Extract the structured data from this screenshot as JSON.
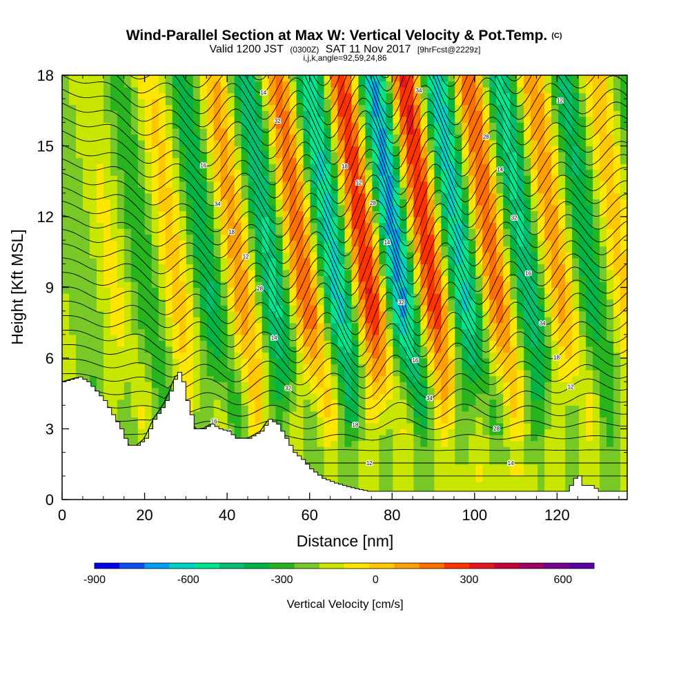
{
  "chart_data": {
    "type": "heatmap",
    "title": "Wind-Parallel Section at Max W: Vertical Velocity & Pot.Temp.",
    "title_mark": "(C)",
    "subtitle_parts": [
      "Valid 1200 JST",
      "(0300Z)",
      "SAT 11 Nov 2017",
      "[9hrFcst@2229z]"
    ],
    "subtitle2": "i,j,k,angle=92,59,24,86",
    "xlabel": "Distance [nm]",
    "ylabel": "Height [Kft MSL]",
    "xlim": [
      0,
      137
    ],
    "ylim": [
      0,
      18
    ],
    "x_ticks": [
      0,
      20,
      40,
      60,
      80,
      100,
      120
    ],
    "y_ticks": [
      0,
      3,
      6,
      9,
      12,
      15,
      18
    ],
    "grid": false,
    "field": "vertical velocity (cm/s) with potential temperature contours",
    "wave_crests_updraft_x_nm": [
      33,
      57,
      72,
      86,
      102,
      118,
      134
    ],
    "wave_troughs_downdraft_x_nm": [
      27,
      42,
      65,
      79,
      93,
      110,
      126
    ],
    "terrain_profile": {
      "x": [
        0,
        4,
        6,
        8,
        10,
        12,
        14,
        15,
        16,
        18,
        20,
        22,
        24,
        25,
        26,
        27,
        28,
        29,
        30,
        31,
        32,
        34,
        36,
        38,
        40,
        42,
        45,
        48,
        50,
        52,
        54,
        56,
        58,
        60,
        63,
        66,
        70,
        74,
        80,
        90,
        100,
        110,
        118,
        120,
        122,
        123,
        124,
        125,
        126,
        128,
        130,
        137
      ],
      "y": [
        5,
        5.2,
        5,
        4.6,
        4.2,
        3.6,
        3.0,
        2.6,
        2.3,
        2.3,
        2.6,
        3.4,
        3.9,
        4.2,
        4.6,
        5.1,
        5.4,
        5.0,
        4.2,
        3.6,
        3.0,
        3.0,
        3.2,
        3.0,
        2.9,
        2.6,
        2.6,
        2.9,
        3.4,
        3.2,
        2.6,
        2.0,
        1.7,
        1.3,
        0.9,
        0.7,
        0.5,
        0.35,
        0.35,
        0.35,
        0.35,
        0.35,
        0.35,
        0.35,
        0.35,
        0.6,
        0.9,
        1.0,
        0.6,
        0.6,
        0.35,
        0.35
      ]
    },
    "theta_contour_labels": [
      "34",
      "12",
      "14",
      "16",
      "18",
      "28",
      "32"
    ],
    "colorbar": {
      "label": "Vertical Velocity [cm/s]",
      "ticks": [
        -900,
        -600,
        -300,
        0,
        300,
        600
      ],
      "min": -900,
      "max": 700,
      "step": 100,
      "colors": [
        "#0000e6",
        "#0a50f0",
        "#00a0f5",
        "#00d2c8",
        "#00e690",
        "#00c070",
        "#00b446",
        "#28b41e",
        "#78c828",
        "#c8e600",
        "#ffe600",
        "#ffc800",
        "#ffa000",
        "#ff6e00",
        "#ff3200",
        "#e6141e",
        "#c8003c",
        "#a00064",
        "#780090",
        "#5a00a0"
      ]
    }
  }
}
